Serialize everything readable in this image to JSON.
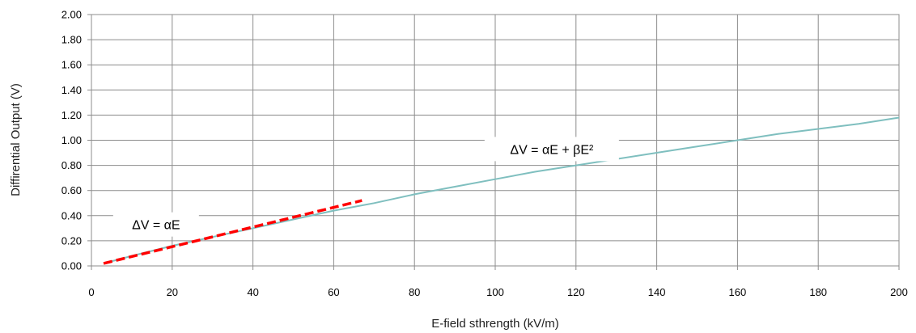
{
  "chart_data": {
    "type": "line",
    "title": "",
    "xlabel": "E-field sthrength (kV/m)",
    "ylabel": "Diffirential Output (V)",
    "xlim": [
      0,
      200
    ],
    "ylim": [
      0,
      2
    ],
    "x_ticks": [
      "0",
      "20",
      "40",
      "60",
      "80",
      "100",
      "120",
      "140",
      "160",
      "180",
      "200"
    ],
    "y_ticks": [
      "0.00",
      "0.20",
      "0.40",
      "0.60",
      "0.80",
      "1.00",
      "1.20",
      "1.40",
      "1.60",
      "1.80",
      "2.00"
    ],
    "grid": true,
    "legend": "none",
    "series": [
      {
        "color": "#7fbfbf",
        "style": "solid",
        "x": [
          3,
          10,
          20,
          30,
          40,
          50,
          60,
          70,
          80,
          90,
          100,
          110,
          120,
          130,
          140,
          150,
          160,
          170,
          180,
          190,
          200
        ],
        "y": [
          0.02,
          0.08,
          0.16,
          0.23,
          0.3,
          0.37,
          0.44,
          0.5,
          0.57,
          0.63,
          0.69,
          0.75,
          0.8,
          0.85,
          0.9,
          0.95,
          1.0,
          1.05,
          1.09,
          1.13,
          1.18
        ]
      },
      {
        "color": "#ff0000",
        "style": "dashed",
        "x": [
          3,
          67
        ],
        "y": [
          0.02,
          0.52
        ]
      }
    ],
    "annotations": [
      {
        "text": "ΔV = αE",
        "x": 16,
        "y": 0.33
      },
      {
        "text": "ΔV = αE + βE²",
        "x": 114,
        "y": 0.93
      }
    ]
  }
}
